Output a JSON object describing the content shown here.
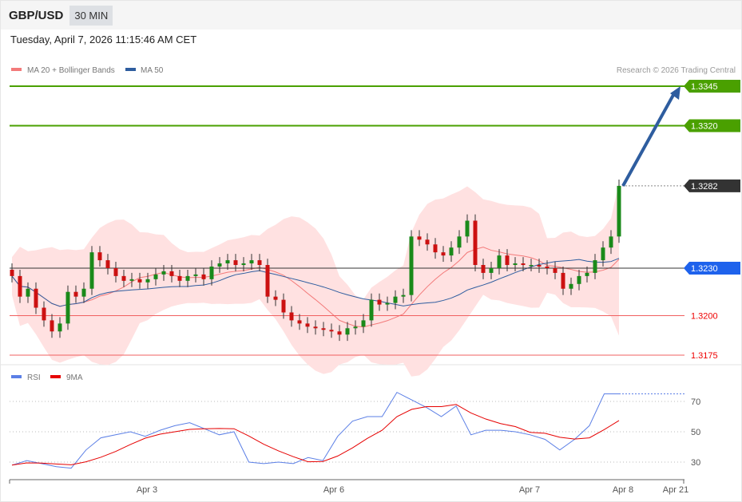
{
  "header": {
    "symbol": "GBP/USD",
    "timeframe": "30 MIN"
  },
  "datetime": "Tuesday, April 7, 2026 11:15:46 AM CET",
  "legend": {
    "ma20": "MA 20 + Bollinger Bands",
    "ma50": "MA 50",
    "rsi": "RSI",
    "rsi_ma": "9MA"
  },
  "copyright": "Research © 2026 Trading Central",
  "colors": {
    "up": "#1a8a1a",
    "down": "#cc1111",
    "ma20": "#f37a7a",
    "ma50": "#2e5d9f",
    "resistance": "#4aa000",
    "support": "#f06060",
    "rsi": "#5b7fe6",
    "rsi_ma": "#e60000"
  },
  "levels": [
    {
      "label": "1.3345",
      "value": 1.3345,
      "type": "resistance"
    },
    {
      "label": "1.3320",
      "value": 1.332,
      "type": "resistance"
    },
    {
      "label": "1.3282",
      "value": 1.3282,
      "type": "last"
    },
    {
      "label": "1.3230",
      "value": 1.323,
      "type": "pivot"
    },
    {
      "label": "1.3200",
      "value": 1.32,
      "type": "support"
    },
    {
      "label": "1.3175",
      "value": 1.3175,
      "type": "support"
    }
  ],
  "chart_data": {
    "type": "candlestick",
    "closes": [
      1.3225,
      1.3212,
      1.3217,
      1.3205,
      1.3197,
      1.319,
      1.3195,
      1.3215,
      1.3212,
      1.3217,
      1.324,
      1.3235,
      1.323,
      1.3225,
      1.3222,
      1.3223,
      1.3221,
      1.3223,
      1.3226,
      1.3228,
      1.3225,
      1.3222,
      1.3225,
      1.3226,
      1.3223,
      1.3231,
      1.3233,
      1.3235,
      1.3232,
      1.3233,
      1.3235,
      1.3232,
      1.3212,
      1.321,
      1.3202,
      1.3197,
      1.3195,
      1.3193,
      1.3192,
      1.3191,
      1.319,
      1.3188,
      1.3192,
      1.3193,
      1.3197,
      1.321,
      1.3207,
      1.3208,
      1.3212,
      1.3213,
      1.325,
      1.3248,
      1.3245,
      1.324,
      1.3238,
      1.3243,
      1.325,
      1.326,
      1.3232,
      1.3227,
      1.323,
      1.3238,
      1.3232,
      1.3233,
      1.3232,
      1.3232,
      1.3231,
      1.323,
      1.3227,
      1.3217,
      1.322,
      1.3225,
      1.3227,
      1.3235,
      1.3243,
      1.325,
      1.3282
    ],
    "target": 1.3345,
    "ylim": [
      1.316,
      1.3365
    ],
    "rsi": [
      28,
      31,
      29,
      27,
      26,
      38,
      46,
      48,
      50,
      47,
      51,
      54,
      56,
      52,
      48,
      50,
      30,
      29,
      30,
      29,
      33,
      31,
      47,
      57,
      60,
      60,
      76,
      71,
      66,
      60,
      67,
      48,
      51,
      51,
      50,
      48,
      45,
      38,
      45,
      54,
      75,
      75
    ],
    "rsi_ticks": [
      70,
      50,
      30
    ],
    "x_ticks": [
      "Apr 3",
      "Apr 6",
      "Apr 7",
      "Apr 8",
      "Apr 21"
    ]
  }
}
